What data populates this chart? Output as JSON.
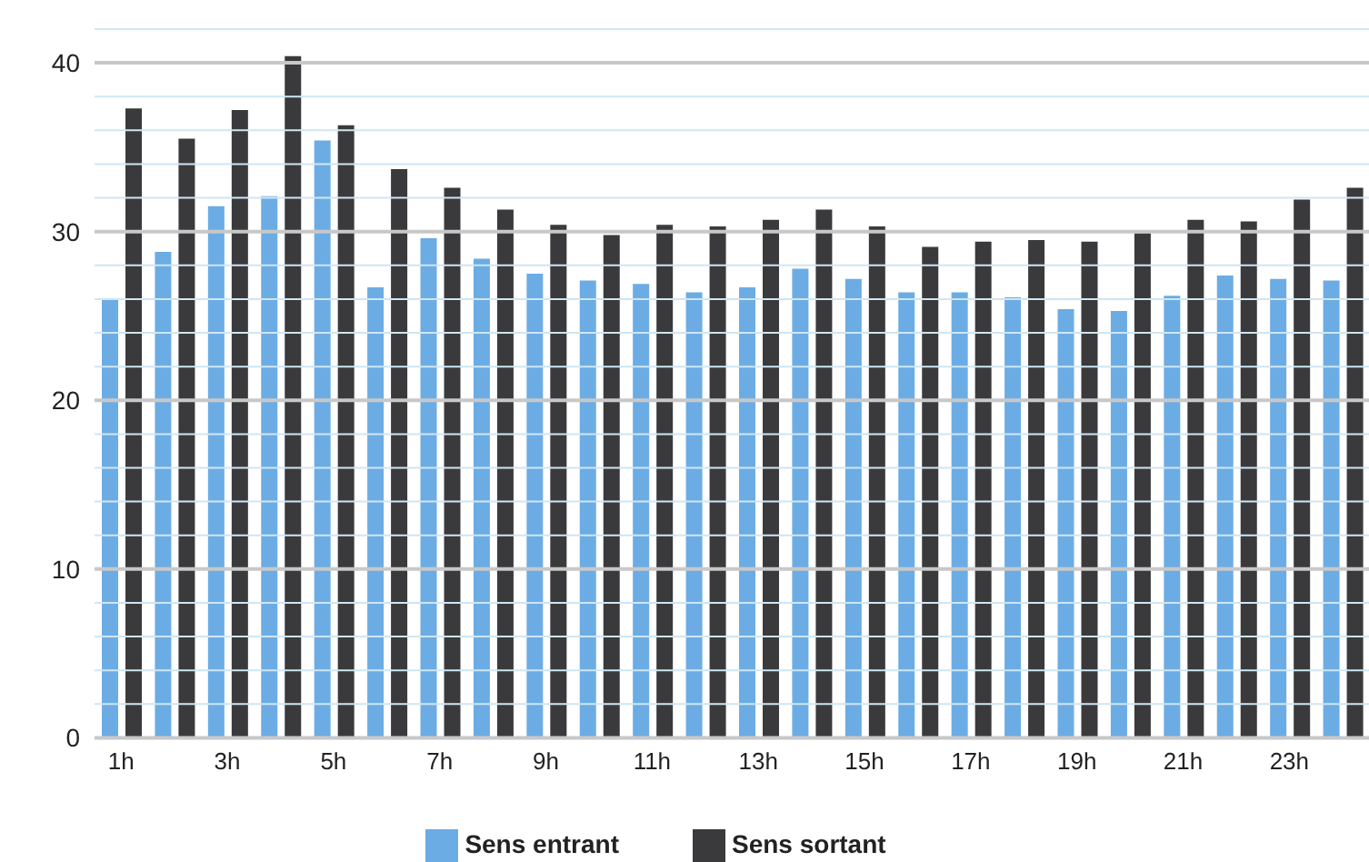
{
  "chart_data": {
    "type": "bar",
    "categories": [
      "1h",
      null,
      "3h",
      null,
      "5h",
      null,
      "7h",
      null,
      "9h",
      null,
      "11h",
      null,
      "13h",
      null,
      "15h",
      null,
      "17h",
      null,
      "19h",
      null,
      "21h",
      null,
      "23h",
      null
    ],
    "series": [
      {
        "name": "Sens entrant",
        "color": "#6cace4",
        "values": [
          26,
          28.8,
          31.5,
          32.1,
          35.4,
          26.7,
          29.6,
          28.4,
          27.5,
          27.1,
          26.9,
          26.4,
          26.7,
          27.8,
          27.2,
          26.4,
          26.4,
          26.1,
          25.4,
          25.3,
          26.2,
          27.4,
          27.2,
          27.1
        ]
      },
      {
        "name": "Sens sortant",
        "color": "#3a3a3c",
        "values": [
          37.3,
          35.5,
          37.2,
          40.4,
          36.3,
          33.7,
          32.6,
          31.3,
          30.4,
          29.8,
          30.4,
          30.3,
          30.7,
          31.3,
          30.3,
          29.1,
          29.4,
          29.5,
          29.4,
          29.9,
          30.7,
          30.6,
          31.9,
          32.6
        ]
      }
    ],
    "ylim": [
      0,
      42
    ],
    "yticks": [
      0,
      {
        "value": 2,
        "label": null
      },
      {
        "value": 4,
        "label": null
      },
      {
        "value": 6,
        "label": null
      },
      {
        "value": 8,
        "label": null
      },
      10,
      {
        "value": 12,
        "label": null
      },
      {
        "value": 14,
        "label": null
      },
      {
        "value": 16,
        "label": null
      },
      {
        "value": 18,
        "label": null
      },
      20,
      {
        "value": 22,
        "label": null
      },
      {
        "value": 24,
        "label": null
      },
      {
        "value": 26,
        "label": null
      },
      {
        "value": 28,
        "label": null
      },
      30,
      {
        "value": 32,
        "label": null
      },
      {
        "value": 34,
        "label": null
      },
      {
        "value": 36,
        "label": null
      },
      {
        "value": 38,
        "label": null
      },
      40,
      {
        "value": 42,
        "label": null
      }
    ],
    "grid": "y",
    "legend": "bottom"
  }
}
